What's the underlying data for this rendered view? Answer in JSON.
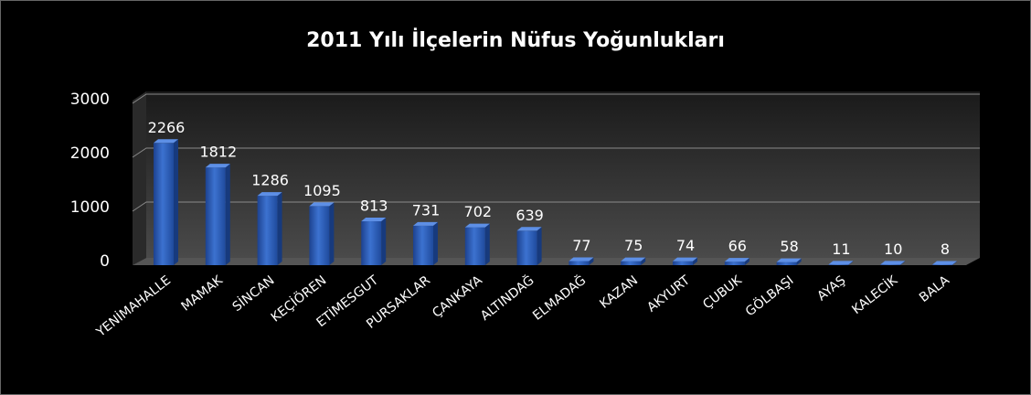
{
  "chart_data": {
    "type": "bar",
    "title": "2011 Yılı İlçelerin Nüfus Yoğunlukları",
    "categories": [
      "YENİMAHALLE",
      "MAMAK",
      "SİNCAN",
      "KEÇİÖREN",
      "ETİMESGUT",
      "PURSAKLAR",
      "ÇANKAYA",
      "ALTINDAĞ",
      "ELMADAĞ",
      "KAZAN",
      "AKYURT",
      "ÇUBUK",
      "GÖLBAŞI",
      "AYAŞ",
      "KALECİK",
      "BALA"
    ],
    "values": [
      2266,
      1812,
      1286,
      1095,
      813,
      731,
      702,
      639,
      77,
      75,
      74,
      66,
      58,
      11,
      10,
      8
    ],
    "color": "#3c72d0",
    "ylim": [
      0,
      3000
    ],
    "yticks": [
      0,
      1000,
      2000,
      3000
    ],
    "grid": true
  }
}
